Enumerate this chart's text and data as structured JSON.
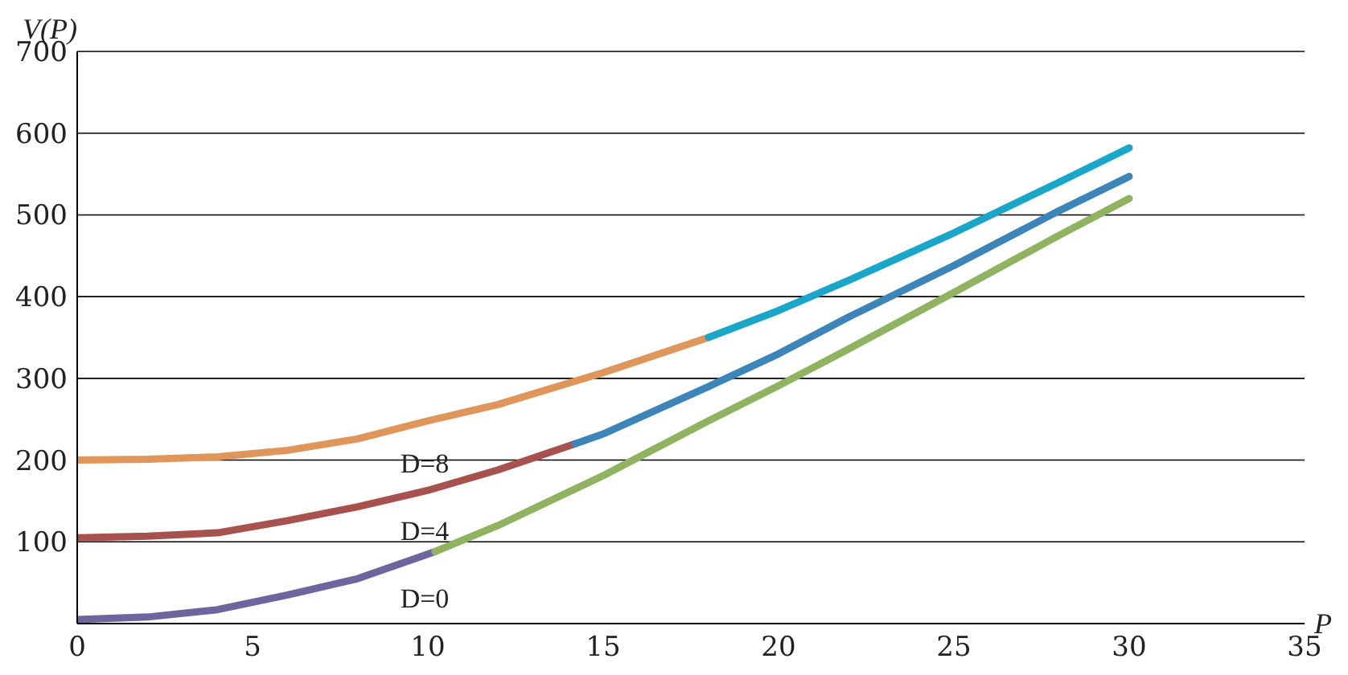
{
  "chart_data": {
    "type": "line",
    "xlabel": "P",
    "ylabel": "V(P)",
    "xlim": [
      0,
      35
    ],
    "xticks": [
      0,
      5,
      10,
      15,
      20,
      25,
      30,
      35
    ],
    "ylim": [
      0,
      700
    ],
    "yticks": [
      100,
      200,
      300,
      400,
      500,
      600,
      700
    ],
    "grid": "y",
    "marker": "none",
    "line_style": "solid",
    "series": [
      {
        "color": "#e0955a",
        "x": [
          0,
          2,
          4,
          6,
          8,
          10,
          12,
          15,
          18
        ],
        "values": [
          200,
          201,
          204,
          212,
          226,
          248,
          268,
          307,
          350
        ]
      },
      {
        "color": "#1aa6c8",
        "x": [
          18,
          20,
          22,
          25,
          28,
          30
        ],
        "values": [
          350,
          383,
          420,
          478,
          540,
          582
        ]
      },
      {
        "color": "#a8524f",
        "x": [
          0,
          2,
          4,
          6,
          8,
          10,
          12,
          14.2
        ],
        "values": [
          105,
          107,
          111,
          126,
          143,
          163,
          188,
          220
        ]
      },
      {
        "color": "#3d85b8",
        "x": [
          14.2,
          15,
          18,
          20,
          22,
          25,
          28,
          30
        ],
        "values": [
          220,
          232,
          290,
          330,
          375,
          438,
          505,
          547
        ]
      },
      {
        "color": "#6e649e",
        "x": [
          0,
          2,
          4,
          6,
          8,
          10.2
        ],
        "values": [
          5,
          8,
          17,
          35,
          55,
          88
        ]
      },
      {
        "color": "#8fb360",
        "x": [
          10.2,
          12,
          15,
          18,
          20,
          22,
          25,
          28,
          30
        ],
        "values": [
          88,
          120,
          181,
          248,
          291,
          336,
          405,
          475,
          520
        ]
      }
    ],
    "annotations": [
      "D=8",
      "D=4",
      "D=0"
    ]
  }
}
